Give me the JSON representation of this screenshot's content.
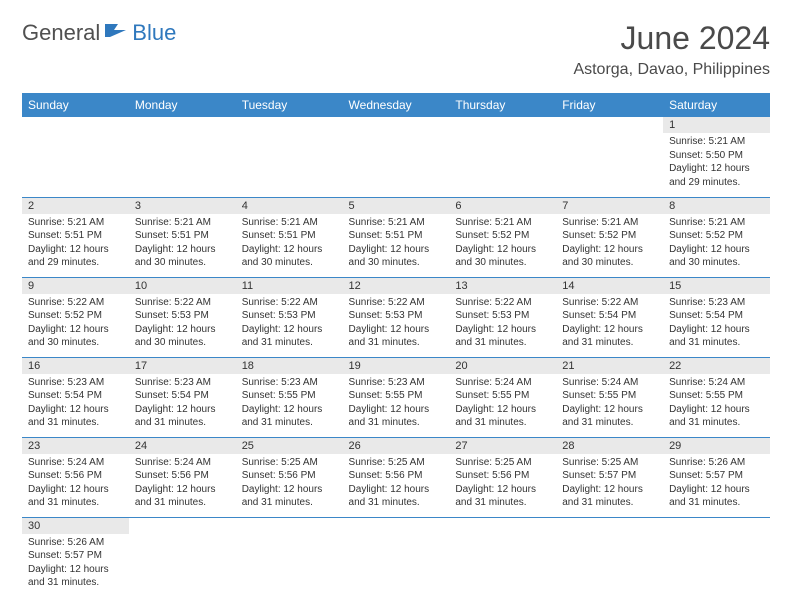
{
  "logo": {
    "general": "General",
    "blue": "Blue"
  },
  "title": "June 2024",
  "location": "Astorga, Davao, Philippines",
  "colors": {
    "header_bg": "#3b87c8",
    "header_text": "#ffffff",
    "daynum_bg": "#e9e9e9",
    "border": "#3b87c8",
    "logo_general": "#505050",
    "logo_blue": "#2f78bd",
    "title_color": "#4a4a4a"
  },
  "weekdays": [
    "Sunday",
    "Monday",
    "Tuesday",
    "Wednesday",
    "Thursday",
    "Friday",
    "Saturday"
  ],
  "weeks": [
    [
      null,
      null,
      null,
      null,
      null,
      null,
      {
        "n": "1",
        "sunrise": "Sunrise: 5:21 AM",
        "sunset": "Sunset: 5:50 PM",
        "daylight": "Daylight: 12 hours and 29 minutes."
      }
    ],
    [
      {
        "n": "2",
        "sunrise": "Sunrise: 5:21 AM",
        "sunset": "Sunset: 5:51 PM",
        "daylight": "Daylight: 12 hours and 29 minutes."
      },
      {
        "n": "3",
        "sunrise": "Sunrise: 5:21 AM",
        "sunset": "Sunset: 5:51 PM",
        "daylight": "Daylight: 12 hours and 30 minutes."
      },
      {
        "n": "4",
        "sunrise": "Sunrise: 5:21 AM",
        "sunset": "Sunset: 5:51 PM",
        "daylight": "Daylight: 12 hours and 30 minutes."
      },
      {
        "n": "5",
        "sunrise": "Sunrise: 5:21 AM",
        "sunset": "Sunset: 5:51 PM",
        "daylight": "Daylight: 12 hours and 30 minutes."
      },
      {
        "n": "6",
        "sunrise": "Sunrise: 5:21 AM",
        "sunset": "Sunset: 5:52 PM",
        "daylight": "Daylight: 12 hours and 30 minutes."
      },
      {
        "n": "7",
        "sunrise": "Sunrise: 5:21 AM",
        "sunset": "Sunset: 5:52 PM",
        "daylight": "Daylight: 12 hours and 30 minutes."
      },
      {
        "n": "8",
        "sunrise": "Sunrise: 5:21 AM",
        "sunset": "Sunset: 5:52 PM",
        "daylight": "Daylight: 12 hours and 30 minutes."
      }
    ],
    [
      {
        "n": "9",
        "sunrise": "Sunrise: 5:22 AM",
        "sunset": "Sunset: 5:52 PM",
        "daylight": "Daylight: 12 hours and 30 minutes."
      },
      {
        "n": "10",
        "sunrise": "Sunrise: 5:22 AM",
        "sunset": "Sunset: 5:53 PM",
        "daylight": "Daylight: 12 hours and 30 minutes."
      },
      {
        "n": "11",
        "sunrise": "Sunrise: 5:22 AM",
        "sunset": "Sunset: 5:53 PM",
        "daylight": "Daylight: 12 hours and 31 minutes."
      },
      {
        "n": "12",
        "sunrise": "Sunrise: 5:22 AM",
        "sunset": "Sunset: 5:53 PM",
        "daylight": "Daylight: 12 hours and 31 minutes."
      },
      {
        "n": "13",
        "sunrise": "Sunrise: 5:22 AM",
        "sunset": "Sunset: 5:53 PM",
        "daylight": "Daylight: 12 hours and 31 minutes."
      },
      {
        "n": "14",
        "sunrise": "Sunrise: 5:22 AM",
        "sunset": "Sunset: 5:54 PM",
        "daylight": "Daylight: 12 hours and 31 minutes."
      },
      {
        "n": "15",
        "sunrise": "Sunrise: 5:23 AM",
        "sunset": "Sunset: 5:54 PM",
        "daylight": "Daylight: 12 hours and 31 minutes."
      }
    ],
    [
      {
        "n": "16",
        "sunrise": "Sunrise: 5:23 AM",
        "sunset": "Sunset: 5:54 PM",
        "daylight": "Daylight: 12 hours and 31 minutes."
      },
      {
        "n": "17",
        "sunrise": "Sunrise: 5:23 AM",
        "sunset": "Sunset: 5:54 PM",
        "daylight": "Daylight: 12 hours and 31 minutes."
      },
      {
        "n": "18",
        "sunrise": "Sunrise: 5:23 AM",
        "sunset": "Sunset: 5:55 PM",
        "daylight": "Daylight: 12 hours and 31 minutes."
      },
      {
        "n": "19",
        "sunrise": "Sunrise: 5:23 AM",
        "sunset": "Sunset: 5:55 PM",
        "daylight": "Daylight: 12 hours and 31 minutes."
      },
      {
        "n": "20",
        "sunrise": "Sunrise: 5:24 AM",
        "sunset": "Sunset: 5:55 PM",
        "daylight": "Daylight: 12 hours and 31 minutes."
      },
      {
        "n": "21",
        "sunrise": "Sunrise: 5:24 AM",
        "sunset": "Sunset: 5:55 PM",
        "daylight": "Daylight: 12 hours and 31 minutes."
      },
      {
        "n": "22",
        "sunrise": "Sunrise: 5:24 AM",
        "sunset": "Sunset: 5:55 PM",
        "daylight": "Daylight: 12 hours and 31 minutes."
      }
    ],
    [
      {
        "n": "23",
        "sunrise": "Sunrise: 5:24 AM",
        "sunset": "Sunset: 5:56 PM",
        "daylight": "Daylight: 12 hours and 31 minutes."
      },
      {
        "n": "24",
        "sunrise": "Sunrise: 5:24 AM",
        "sunset": "Sunset: 5:56 PM",
        "daylight": "Daylight: 12 hours and 31 minutes."
      },
      {
        "n": "25",
        "sunrise": "Sunrise: 5:25 AM",
        "sunset": "Sunset: 5:56 PM",
        "daylight": "Daylight: 12 hours and 31 minutes."
      },
      {
        "n": "26",
        "sunrise": "Sunrise: 5:25 AM",
        "sunset": "Sunset: 5:56 PM",
        "daylight": "Daylight: 12 hours and 31 minutes."
      },
      {
        "n": "27",
        "sunrise": "Sunrise: 5:25 AM",
        "sunset": "Sunset: 5:56 PM",
        "daylight": "Daylight: 12 hours and 31 minutes."
      },
      {
        "n": "28",
        "sunrise": "Sunrise: 5:25 AM",
        "sunset": "Sunset: 5:57 PM",
        "daylight": "Daylight: 12 hours and 31 minutes."
      },
      {
        "n": "29",
        "sunrise": "Sunrise: 5:26 AM",
        "sunset": "Sunset: 5:57 PM",
        "daylight": "Daylight: 12 hours and 31 minutes."
      }
    ],
    [
      {
        "n": "30",
        "sunrise": "Sunrise: 5:26 AM",
        "sunset": "Sunset: 5:57 PM",
        "daylight": "Daylight: 12 hours and 31 minutes."
      },
      null,
      null,
      null,
      null,
      null,
      null
    ]
  ]
}
